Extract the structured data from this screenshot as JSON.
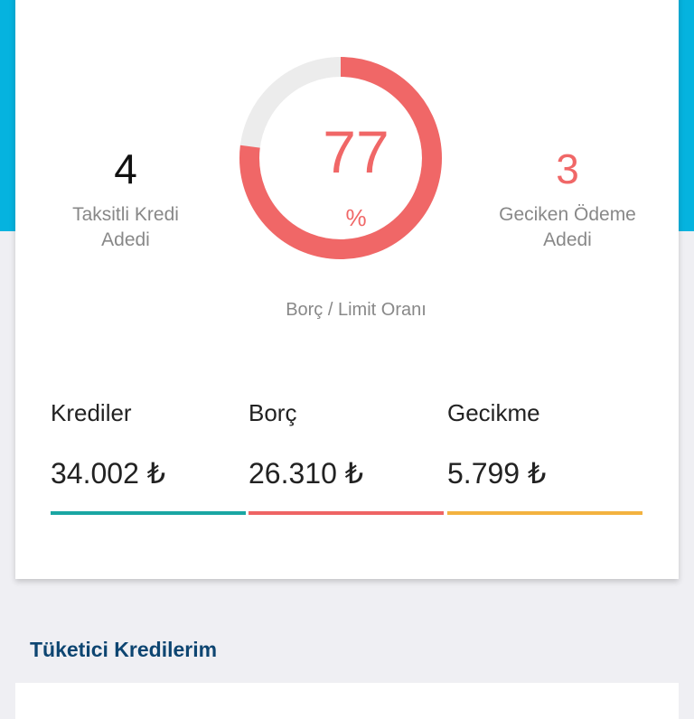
{
  "summary": {
    "left_stat": {
      "value": "4",
      "label": "Taksitli Kredi Adedi"
    },
    "right_stat": {
      "value": "3",
      "label": "Geciken Ödeme Adedi"
    },
    "ratio": {
      "value": "77",
      "unit": "%",
      "label": "Borç / Limit Oranı",
      "percent": 77
    },
    "columns": [
      {
        "title": "Krediler",
        "value": "34.002 ₺",
        "color": "#1aa6a3"
      },
      {
        "title": "Borç",
        "value": "26.310 ₺",
        "color": "#ee6464"
      },
      {
        "title": "Gecikme",
        "value": "5.799 ₺",
        "color": "#f3b23f"
      }
    ]
  },
  "colors": {
    "accent_red": "#f06767",
    "track": "#ececec",
    "header_blue": "#05b3df",
    "section_title": "#0d4571"
  },
  "section": {
    "title": "Tüketici Kredilerim"
  }
}
